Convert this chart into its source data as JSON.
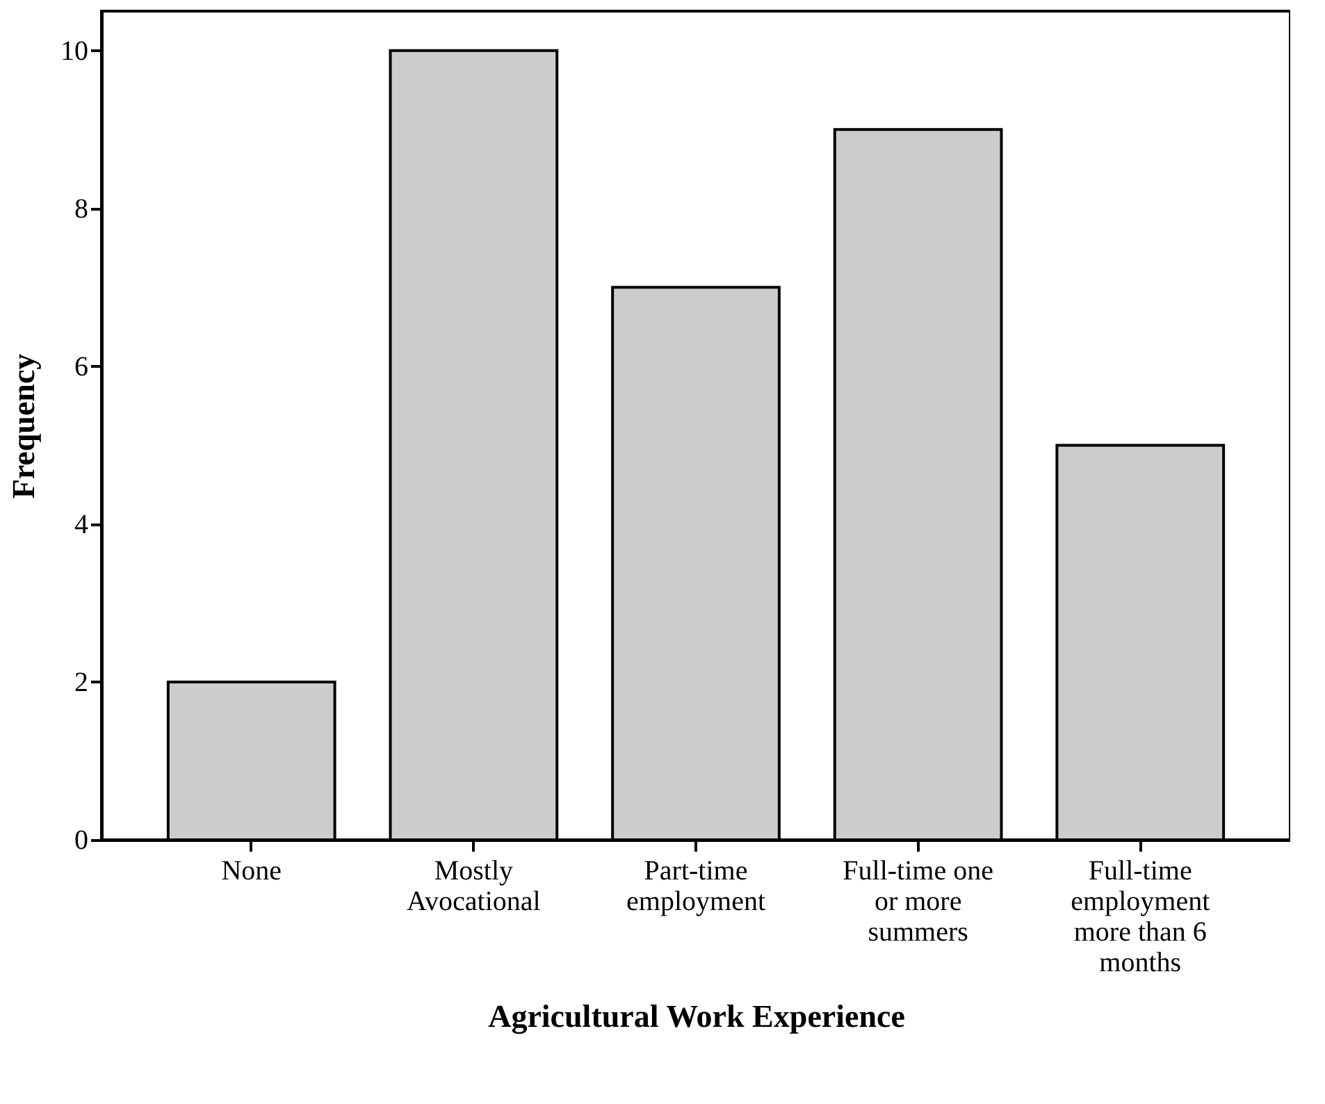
{
  "chart_data": {
    "type": "bar",
    "xlabel": "Agricultural Work Experience",
    "ylabel": "Frequency",
    "categories": [
      "None",
      "Mostly Avocational",
      "Part-time employment",
      "Full-time one or more summers",
      "Full-time employment more than 6 months"
    ],
    "values": [
      2,
      10,
      7,
      9,
      5
    ],
    "color": "#cccccc",
    "ylim": [
      0,
      10.5
    ],
    "yticks": [
      0,
      2,
      4,
      6,
      8,
      10
    ],
    "grid": false
  }
}
